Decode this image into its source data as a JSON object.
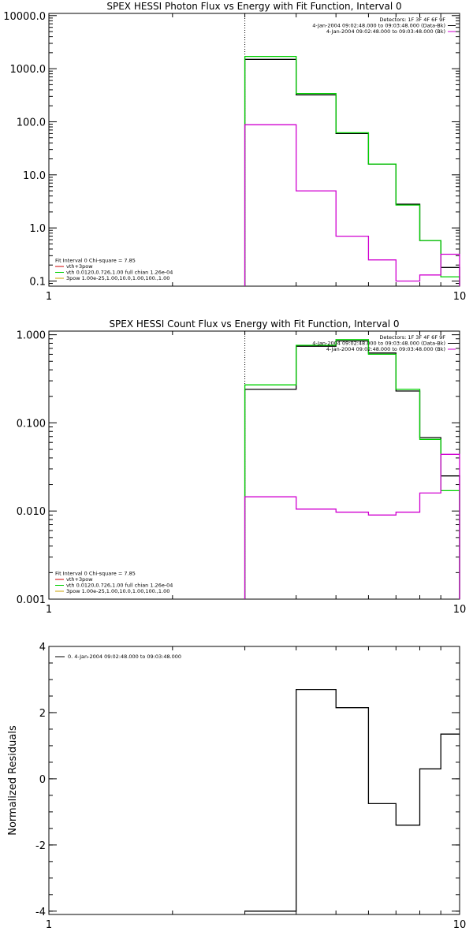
{
  "colors": {
    "black": "#000000",
    "green": "#00d000",
    "magenta": "#d000d0",
    "red": "#d00000",
    "gold": "#c8a000"
  },
  "chart_data": [
    {
      "type": "line",
      "title": "SPEX HESSI Photon Flux vs Energy with Fit Function, Interval 0",
      "xlabel": "",
      "ylabel": "",
      "xscale": "log",
      "yscale": "log",
      "xlim": [
        1,
        10
      ],
      "ylim": [
        0.08,
        11000
      ],
      "xticks": [
        1,
        10
      ],
      "xtick_labels": [
        "1",
        "10"
      ],
      "yticks": [
        0.1,
        1,
        10,
        100,
        1000,
        10000
      ],
      "ytick_labels": [
        "0.1",
        "1.0",
        "10.0",
        "100.0",
        "1000.0",
        "10000.0"
      ],
      "marker_line_x": 3.0,
      "bin_edges": [
        3.0,
        4.0,
        5.0,
        6.0,
        7.0,
        8.0,
        9.0,
        10.0
      ],
      "series": [
        {
          "color": "#000000",
          "values": [
            1500,
            320,
            60,
            16,
            2.8,
            0.58,
            0.18
          ]
        },
        {
          "color": "#00d000",
          "values": [
            1700,
            340,
            62,
            16,
            2.7,
            0.58,
            0.12
          ]
        },
        {
          "color": "#d000d0",
          "values": [
            88,
            5.0,
            0.7,
            0.25,
            0.1,
            0.13,
            0.32
          ]
        }
      ],
      "legend_top_right": [
        {
          "text": "Detectors: 1F 3F 4F 6F 9F",
          "color": "#000000"
        },
        {
          "text": "4-Jan-2004 09:02:48.000 to 09:03:48.000 (Data-Bk)",
          "color": "#000000"
        },
        {
          "text": "4-Jan-2004 09:02:48.000 to 09:03:48.000 (Bk)",
          "color": "#d000d0"
        }
      ],
      "legend_bottom_left": [
        {
          "text": "Fit Interval 0   Chi-square = 7.85",
          "color": ""
        },
        {
          "text": "vth+3pow",
          "color": "#d00000"
        },
        {
          "text": "vth 0.0120,0.726,1.00  full chian 1.26e-04",
          "color": "#00d000"
        },
        {
          "text": "3pow 1.00e-25,1.00,10.0,1.00,100.,1.00",
          "color": "#c8a000"
        }
      ]
    },
    {
      "type": "line",
      "title": "SPEX HESSI Count Flux vs Energy with Fit Function, Interval 0",
      "xlabel": "",
      "ylabel": "",
      "xscale": "log",
      "yscale": "log",
      "xlim": [
        1,
        10
      ],
      "ylim": [
        0.001,
        1.1
      ],
      "xticks": [
        1,
        10
      ],
      "xtick_labels": [
        "1",
        "10"
      ],
      "yticks": [
        0.001,
        0.01,
        0.1,
        1.0
      ],
      "ytick_labels": [
        "0.001",
        "0.010",
        "0.100",
        "1.000"
      ],
      "marker_line_x": 3.0,
      "bin_edges": [
        3.0,
        4.0,
        5.0,
        6.0,
        7.0,
        8.0,
        9.0,
        10.0
      ],
      "series": [
        {
          "color": "#000000",
          "values": [
            0.24,
            0.74,
            0.85,
            0.62,
            0.23,
            0.068,
            0.025
          ]
        },
        {
          "color": "#00d000",
          "values": [
            0.27,
            0.76,
            0.88,
            0.6,
            0.24,
            0.065,
            0.017
          ]
        },
        {
          "color": "#d000d0",
          "values": [
            0.0145,
            0.0105,
            0.0097,
            0.009,
            0.0097,
            0.016,
            0.044
          ]
        }
      ],
      "legend_top_right": [
        {
          "text": "Detectors: 1F 3F 4F 6F 9F",
          "color": "#000000"
        },
        {
          "text": "4-Jan-2004 09:02:48.000 to 09:03:48.000 (Data-Bk)",
          "color": "#000000"
        },
        {
          "text": "4-Jan-2004 09:02:48.000 to 09:03:48.000 (Bk)",
          "color": "#d000d0"
        }
      ],
      "legend_bottom_left": [
        {
          "text": "Fit Interval 0   Chi-square = 7.85",
          "color": ""
        },
        {
          "text": "vth+3pow",
          "color": "#d00000"
        },
        {
          "text": "vth 0.0120,0.726,1.00  full chian 1.26e-04",
          "color": "#00d000"
        },
        {
          "text": "3pow 1.00e-25,1.00,10.0,1.00,100.,1.00",
          "color": "#c8a000"
        }
      ]
    },
    {
      "type": "line",
      "title": "",
      "xlabel": "",
      "ylabel": "Normalized Residuals",
      "xscale": "log",
      "yscale": "linear",
      "xlim": [
        1,
        10
      ],
      "ylim": [
        -4.1,
        4.0
      ],
      "xticks": [
        1,
        10
      ],
      "xtick_labels": [
        "1",
        "10"
      ],
      "yticks": [
        -4,
        -2,
        0,
        2,
        4
      ],
      "ytick_labels": [
        "-4",
        "-2",
        "0",
        "2",
        "4"
      ],
      "bin_edges": [
        3.0,
        4.0,
        5.0,
        6.0,
        7.0,
        8.0,
        9.0,
        10.0
      ],
      "series": [
        {
          "color": "#000000",
          "values": [
            -4.0,
            2.7,
            2.15,
            -0.75,
            -1.4,
            0.3,
            1.35
          ]
        }
      ],
      "legend_top_left": [
        {
          "text": "0. 4-Jan-2004 09:02:48.000 to 09:03:48.000",
          "color": "#000000"
        }
      ]
    }
  ]
}
